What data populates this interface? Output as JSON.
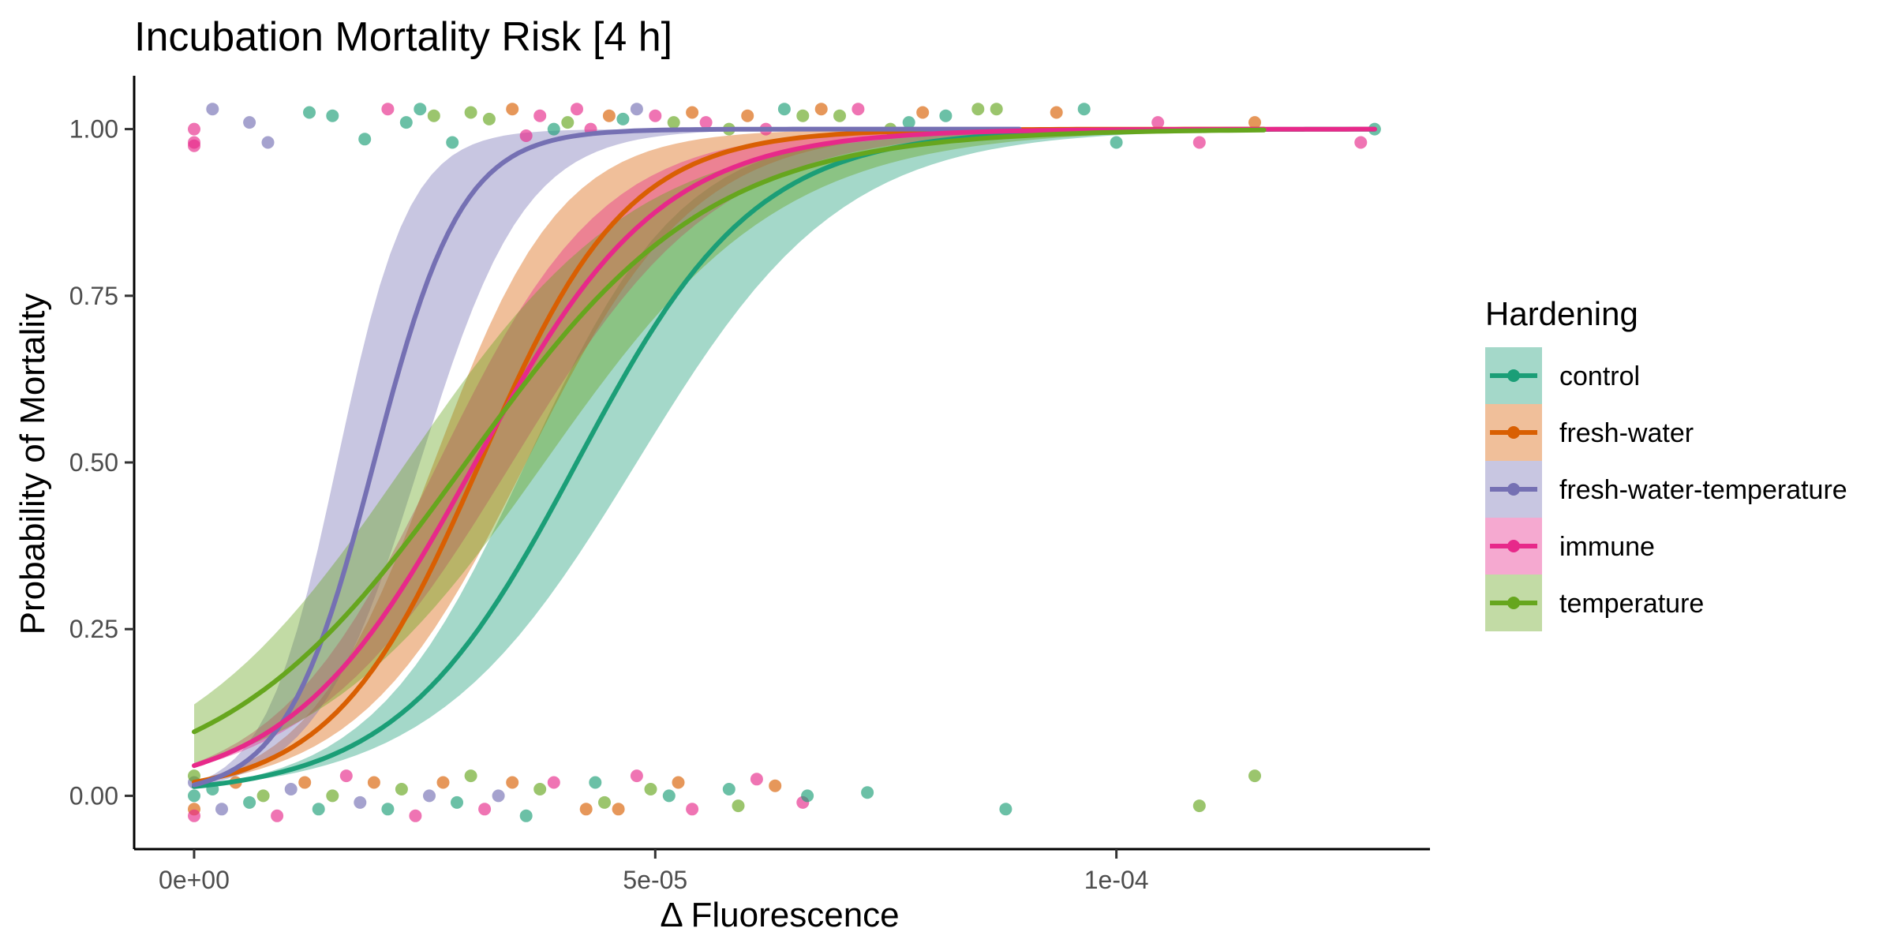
{
  "chart_data": {
    "type": "scatter",
    "title": "Incubation Mortality Risk [4 h]",
    "xlabel": "Δ Fluorescence",
    "ylabel": "Probability of Mortality",
    "xlim": [
      -6.5e-06,
      0.000134
    ],
    "ylim": [
      -0.08,
      1.08
    ],
    "x_ticks": [
      {
        "value": 0,
        "label": "0e+00"
      },
      {
        "value": 5e-05,
        "label": "5e-05"
      },
      {
        "value": 0.0001,
        "label": "1e-04"
      }
    ],
    "y_ticks": [
      {
        "value": 0,
        "label": "0.00"
      },
      {
        "value": 0.25,
        "label": "0.25"
      },
      {
        "value": 0.5,
        "label": "0.50"
      },
      {
        "value": 0.75,
        "label": "0.75"
      },
      {
        "value": 1,
        "label": "1.00"
      }
    ],
    "grid": false,
    "legend": {
      "title": "Hardening",
      "position": "right"
    },
    "series": [
      {
        "name": "control",
        "color": "#1B9E77",
        "logistic": {
          "x0": 4.15e-05,
          "k": 103000,
          "x_max": 0.000128
        },
        "ribbon": {
          "lo_x0": 4.8e-05,
          "lo_k": 90000,
          "hi_x0": 3.6e-05,
          "hi_k": 118000
        }
      },
      {
        "name": "fresh-water",
        "color": "#D95F02",
        "logistic": {
          "x0": 3.1e-05,
          "k": 125000,
          "x_max": 0.000116
        },
        "ribbon": {
          "lo_x0": 3.6e-05,
          "lo_k": 110000,
          "hi_x0": 2.6e-05,
          "hi_k": 145000
        }
      },
      {
        "name": "fresh-water-temperature",
        "color": "#7570B3",
        "logistic": {
          "x0": 1.95e-05,
          "k": 210000,
          "x_max": 8.95e-05
        },
        "ribbon": {
          "lo_x0": 2.45e-05,
          "lo_k": 175000,
          "hi_x0": 1.55e-05,
          "hi_k": 255000
        }
      },
      {
        "name": "immune",
        "color": "#E7298A",
        "logistic": {
          "x0": 3.05e-05,
          "k": 100000,
          "x_max": 0.000128
        },
        "ribbon": {
          "lo_x0": 3.45e-05,
          "lo_k": 90000,
          "hi_x0": 2.65e-05,
          "hi_k": 112000
        }
      },
      {
        "name": "temperature",
        "color": "#66A61E",
        "logistic": {
          "x0": 2.95e-05,
          "k": 76000,
          "x_max": 0.000116
        },
        "ribbon": {
          "lo_x0": 3.8e-05,
          "lo_k": 78000,
          "hi_x0": 2.3e-05,
          "hi_k": 80000
        }
      }
    ],
    "points": {
      "top_row": [
        [
          0,
          0.98,
          3
        ],
        [
          0,
          1.0,
          3
        ],
        [
          0,
          0.975,
          3
        ],
        [
          2e-06,
          1.03,
          2
        ],
        [
          8e-06,
          0.98,
          2
        ],
        [
          6e-06,
          1.01,
          2
        ],
        [
          1.25e-05,
          1.025,
          0
        ],
        [
          1.5e-05,
          1.02,
          0
        ],
        [
          1.85e-05,
          0.985,
          0
        ],
        [
          2.1e-05,
          1.03,
          3
        ],
        [
          2.3e-05,
          1.01,
          0
        ],
        [
          2.45e-05,
          1.03,
          0
        ],
        [
          2.6e-05,
          1.02,
          4
        ],
        [
          2.8e-05,
          0.98,
          0
        ],
        [
          3e-05,
          1.025,
          4
        ],
        [
          3.2e-05,
          1.015,
          4
        ],
        [
          3.45e-05,
          1.03,
          1
        ],
        [
          3.6e-05,
          0.99,
          3
        ],
        [
          3.75e-05,
          1.02,
          3
        ],
        [
          3.9e-05,
          1.0,
          0
        ],
        [
          4.05e-05,
          1.01,
          4
        ],
        [
          4.15e-05,
          1.03,
          3
        ],
        [
          4.3e-05,
          1.0,
          3
        ],
        [
          4.5e-05,
          1.02,
          1
        ],
        [
          4.65e-05,
          1.015,
          0
        ],
        [
          4.8e-05,
          1.03,
          2
        ],
        [
          5e-05,
          1.02,
          3
        ],
        [
          5.2e-05,
          1.01,
          4
        ],
        [
          5.4e-05,
          1.025,
          1
        ],
        [
          5.55e-05,
          1.01,
          3
        ],
        [
          5.8e-05,
          1.0,
          4
        ],
        [
          6e-05,
          1.02,
          1
        ],
        [
          6.2e-05,
          1.0,
          3
        ],
        [
          6.4e-05,
          1.03,
          0
        ],
        [
          6.6e-05,
          1.02,
          4
        ],
        [
          6.8e-05,
          1.03,
          1
        ],
        [
          7e-05,
          1.02,
          4
        ],
        [
          7.2e-05,
          1.03,
          3
        ],
        [
          7.55e-05,
          1.0,
          4
        ],
        [
          7.75e-05,
          1.01,
          0
        ],
        [
          7.9e-05,
          1.025,
          1
        ],
        [
          8.15e-05,
          1.02,
          0
        ],
        [
          8.5e-05,
          1.03,
          4
        ],
        [
          8.7e-05,
          1.03,
          4
        ],
        [
          9.35e-05,
          1.025,
          1
        ],
        [
          9.65e-05,
          1.03,
          0
        ],
        [
          0.0001,
          0.98,
          0
        ],
        [
          0.0001045,
          1.01,
          3
        ],
        [
          0.000109,
          0.98,
          3
        ],
        [
          0.000115,
          1.01,
          1
        ],
        [
          0.0001265,
          0.98,
          3
        ],
        [
          0.000128,
          1.0,
          0
        ]
      ],
      "bottom_row": [
        [
          0,
          0.0,
          0
        ],
        [
          0,
          -0.02,
          1
        ],
        [
          0,
          0.02,
          2
        ],
        [
          0,
          -0.03,
          3
        ],
        [
          0,
          0.03,
          4
        ],
        [
          2e-06,
          0.01,
          0
        ],
        [
          3e-06,
          -0.02,
          2
        ],
        [
          4.5e-06,
          0.02,
          1
        ],
        [
          6e-06,
          -0.01,
          0
        ],
        [
          7.5e-06,
          0.0,
          4
        ],
        [
          9e-06,
          -0.03,
          3
        ],
        [
          1.05e-05,
          0.01,
          2
        ],
        [
          1.2e-05,
          0.02,
          1
        ],
        [
          1.35e-05,
          -0.02,
          0
        ],
        [
          1.5e-05,
          0.0,
          4
        ],
        [
          1.65e-05,
          0.03,
          3
        ],
        [
          1.8e-05,
          -0.01,
          2
        ],
        [
          1.95e-05,
          0.02,
          1
        ],
        [
          2.1e-05,
          -0.02,
          0
        ],
        [
          2.25e-05,
          0.01,
          4
        ],
        [
          2.4e-05,
          -0.03,
          3
        ],
        [
          2.55e-05,
          0.0,
          2
        ],
        [
          2.7e-05,
          0.02,
          1
        ],
        [
          2.85e-05,
          -0.01,
          0
        ],
        [
          3e-05,
          0.03,
          4
        ],
        [
          3.15e-05,
          -0.02,
          3
        ],
        [
          3.3e-05,
          0.0,
          2
        ],
        [
          3.45e-05,
          0.02,
          1
        ],
        [
          3.6e-05,
          -0.03,
          0
        ],
        [
          3.75e-05,
          0.01,
          4
        ],
        [
          3.9e-05,
          0.02,
          3
        ],
        [
          4.25e-05,
          -0.02,
          1
        ],
        [
          4.35e-05,
          0.02,
          0
        ],
        [
          4.45e-05,
          -0.01,
          4
        ],
        [
          4.6e-05,
          -0.02,
          1
        ],
        [
          4.8e-05,
          0.03,
          3
        ],
        [
          4.95e-05,
          0.01,
          4
        ],
        [
          5.15e-05,
          0.0,
          0
        ],
        [
          5.25e-05,
          0.02,
          1
        ],
        [
          5.4e-05,
          -0.02,
          3
        ],
        [
          5.8e-05,
          0.01,
          0
        ],
        [
          5.9e-05,
          -0.015,
          4
        ],
        [
          6.1e-05,
          0.025,
          3
        ],
        [
          6.3e-05,
          0.015,
          1
        ],
        [
          6.6e-05,
          -0.01,
          3
        ],
        [
          6.65e-05,
          0.0,
          0
        ],
        [
          7.3e-05,
          0.005,
          0
        ],
        [
          8.8e-05,
          -0.02,
          0
        ],
        [
          0.000109,
          -0.015,
          4
        ],
        [
          0.000115,
          0.03,
          4
        ]
      ]
    }
  }
}
